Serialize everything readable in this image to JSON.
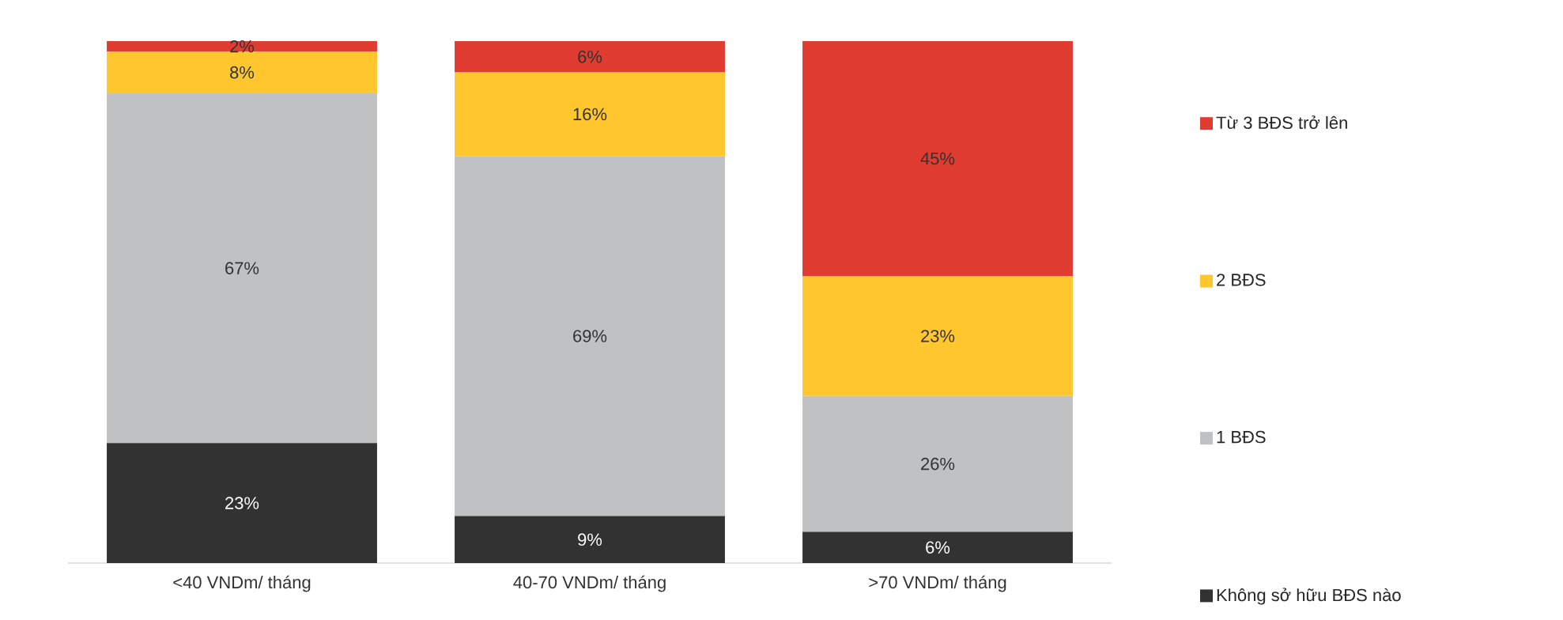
{
  "chart_data": {
    "type": "bar",
    "stacked": true,
    "legend": "right",
    "data_labels": true,
    "categories": [
      "<40 VNDm/ tháng",
      "40-70 VNDm/ tháng",
      ">70 VNDm/ tháng"
    ],
    "series": [
      {
        "name": "Không sở hữu BĐS nào",
        "color": "#323232",
        "values": [
          23,
          9,
          6
        ],
        "value_labels": [
          "23%",
          "9%",
          "6%"
        ]
      },
      {
        "name": "1 BĐS",
        "color": "#c0c1c3",
        "values": [
          67,
          69,
          26
        ],
        "value_labels": [
          "67%",
          "69%",
          "26%"
        ]
      },
      {
        "name": "2 BĐS",
        "color": "#ffc62e",
        "values": [
          8,
          16,
          23
        ],
        "value_labels": [
          "8%",
          "16%",
          "23%"
        ]
      },
      {
        "name": "Từ 3 BĐS trở lên",
        "color": "#e03c31",
        "values": [
          2,
          6,
          45
        ],
        "value_labels": [
          "2%",
          "6%",
          "45%"
        ]
      }
    ]
  }
}
